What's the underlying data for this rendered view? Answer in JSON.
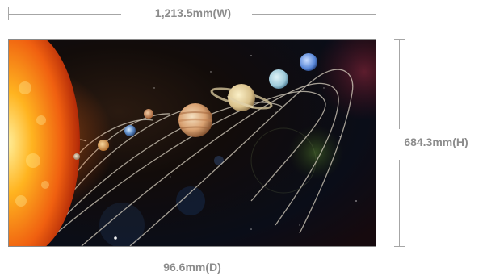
{
  "dimensions": {
    "width_label": "1,213.5mm(W)",
    "height_label": "684.3mm(H)",
    "depth_label": "96.6mm(D)"
  },
  "image": {
    "subject": "solar-system-illustration"
  },
  "colors": {
    "dimension_text": "#8c8c8c",
    "dimension_line": "#a6a6a6",
    "screen_border": "#8a8a8a"
  }
}
